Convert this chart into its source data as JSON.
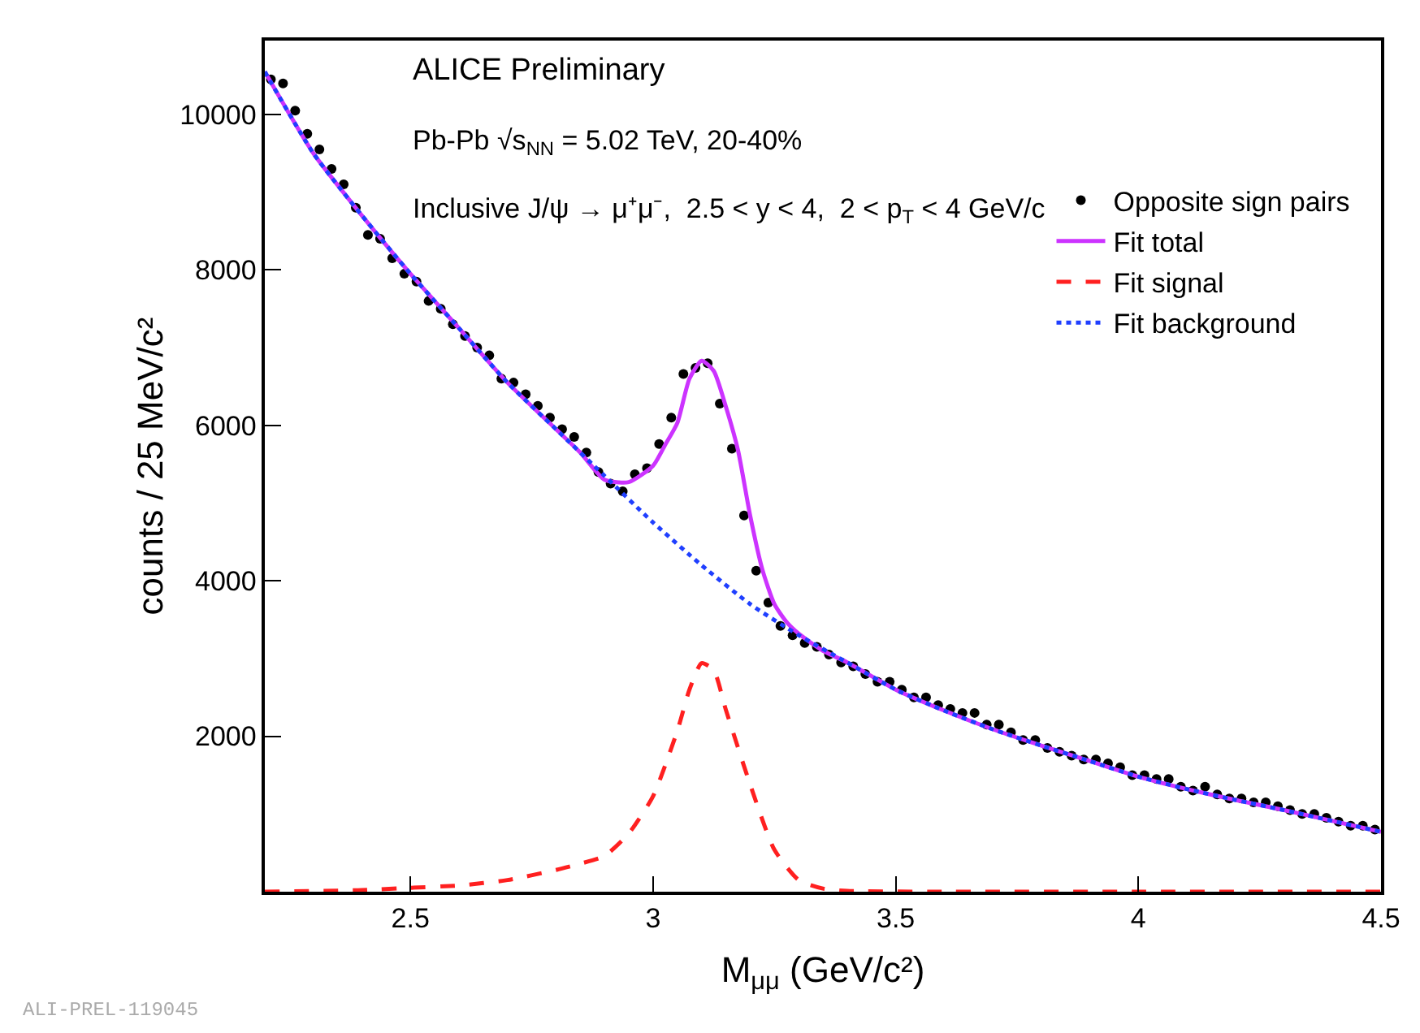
{
  "chart_data": {
    "type": "line",
    "xlabel": "M$_{μμ}$ (GeV/c²)",
    "ylabel": "counts / 25 MeV/c²",
    "annotations": [
      "ALICE Preliminary",
      "Pb-Pb √s$_{NN}$ = 5.02 TeV, 20-40%",
      "Inclusive J/ψ → μ⁺μ⁻,  2.5 < y < 4,  2 < p$_{T}$ < 4 GeV/c",
      "ALI-PREL-119045"
    ],
    "xlim": [
      2.2,
      4.5
    ],
    "ylim": [
      0,
      10950
    ],
    "xticks": [
      2.5,
      3,
      3.5,
      4,
      4.5
    ],
    "yticks": [
      2000,
      4000,
      6000,
      8000,
      10000
    ],
    "legend": "right",
    "series": [
      {
        "name": "Opposite sign pairs",
        "type": "scatter",
        "marker": "circle",
        "color": "#000000",
        "x": [
          2.2125,
          2.2375,
          2.2625,
          2.2875,
          2.3125,
          2.3375,
          2.3625,
          2.3875,
          2.4125,
          2.4375,
          2.4625,
          2.4875,
          2.5125,
          2.5375,
          2.5625,
          2.5875,
          2.6125,
          2.6375,
          2.6625,
          2.6875,
          2.7125,
          2.7375,
          2.7625,
          2.7875,
          2.8125,
          2.8375,
          2.8625,
          2.8875,
          2.9125,
          2.9375,
          2.9625,
          2.9875,
          3.0125,
          3.0375,
          3.0625,
          3.0875,
          3.1125,
          3.1375,
          3.1625,
          3.1875,
          3.2125,
          3.2375,
          3.2625,
          3.2875,
          3.3125,
          3.3375,
          3.3625,
          3.3875,
          3.4125,
          3.4375,
          3.4625,
          3.4875,
          3.5125,
          3.5375,
          3.5625,
          3.5875,
          3.6125,
          3.6375,
          3.6625,
          3.6875,
          3.7125,
          3.7375,
          3.7625,
          3.7875,
          3.8125,
          3.8375,
          3.8625,
          3.8875,
          3.9125,
          3.9375,
          3.9625,
          3.9875,
          4.0125,
          4.0375,
          4.0625,
          4.0875,
          4.1125,
          4.1375,
          4.1625,
          4.1875,
          4.2125,
          4.2375,
          4.2625,
          4.2875,
          4.3125,
          4.3375,
          4.3625,
          4.3875,
          4.4125,
          4.4375,
          4.4625,
          4.4875
        ],
        "values": [
          10450,
          10400,
          10050,
          9750,
          9550,
          9300,
          9100,
          8800,
          8450,
          8400,
          8150,
          7950,
          7850,
          7600,
          7500,
          7300,
          7150,
          7000,
          6900,
          6600,
          6550,
          6400,
          6250,
          6100,
          5950,
          5850,
          5650,
          5400,
          5250,
          5150,
          5370,
          5450,
          5760,
          6100,
          6660,
          6740,
          6800,
          6280,
          5700,
          4840,
          4130,
          3720,
          3420,
          3300,
          3200,
          3150,
          3050,
          2950,
          2900,
          2800,
          2700,
          2700,
          2600,
          2500,
          2500,
          2400,
          2350,
          2300,
          2300,
          2150,
          2150,
          2050,
          1950,
          1950,
          1850,
          1800,
          1750,
          1700,
          1700,
          1650,
          1600,
          1500,
          1500,
          1450,
          1450,
          1350,
          1300,
          1350,
          1250,
          1200,
          1200,
          1150,
          1150,
          1100,
          1050,
          1000,
          1000,
          950,
          900,
          850,
          850,
          800
        ]
      },
      {
        "name": "Fit total",
        "line_style": "solid",
        "color": "#cc33ff",
        "x": [
          2.2,
          2.3,
          2.4,
          2.5,
          2.6,
          2.7,
          2.8,
          2.85,
          2.9,
          2.95,
          3.0,
          3.025,
          3.05,
          3.075,
          3.1,
          3.125,
          3.15,
          3.175,
          3.2,
          3.225,
          3.25,
          3.275,
          3.3,
          3.35,
          3.4,
          3.5,
          3.6,
          3.7,
          3.8,
          3.9,
          4.0,
          4.1,
          4.2,
          4.3,
          4.4,
          4.5
        ],
        "values": [
          10550,
          9500,
          8700,
          7950,
          7250,
          6550,
          5950,
          5650,
          5300,
          5270,
          5480,
          5750,
          6030,
          6600,
          6830,
          6700,
          6240,
          5680,
          4840,
          4150,
          3700,
          3470,
          3320,
          3100,
          2950,
          2600,
          2330,
          2090,
          1880,
          1680,
          1480,
          1320,
          1180,
          1050,
          910,
          770
        ]
      },
      {
        "name": "Fit signal",
        "line_style": "dashed",
        "color": "#ff2020",
        "x": [
          2.2,
          2.4,
          2.5,
          2.6,
          2.7,
          2.8,
          2.85,
          2.9,
          2.95,
          3.0,
          3.05,
          3.075,
          3.1,
          3.125,
          3.15,
          3.2,
          3.25,
          3.3,
          3.35,
          3.4,
          3.6,
          4.0,
          4.5
        ],
        "values": [
          0,
          20,
          50,
          80,
          150,
          280,
          360,
          460,
          750,
          1230,
          2070,
          2600,
          2940,
          2850,
          2340,
          1380,
          540,
          150,
          40,
          10,
          0,
          0,
          0
        ]
      },
      {
        "name": "Fit background",
        "line_style": "dotted",
        "color": "#1f3fff",
        "x": [
          2.2,
          2.3,
          2.4,
          2.5,
          2.6,
          2.7,
          2.8,
          2.9,
          3.0,
          3.1,
          3.2,
          3.3,
          3.4,
          3.5,
          3.6,
          3.7,
          3.8,
          3.9,
          4.0,
          4.1,
          4.2,
          4.3,
          4.4,
          4.5
        ],
        "values": [
          10550,
          9500,
          8700,
          7950,
          7250,
          6550,
          5950,
          5350,
          4750,
          4200,
          3700,
          3300,
          2950,
          2600,
          2330,
          2090,
          1880,
          1680,
          1480,
          1320,
          1180,
          1050,
          910,
          770
        ]
      }
    ]
  }
}
